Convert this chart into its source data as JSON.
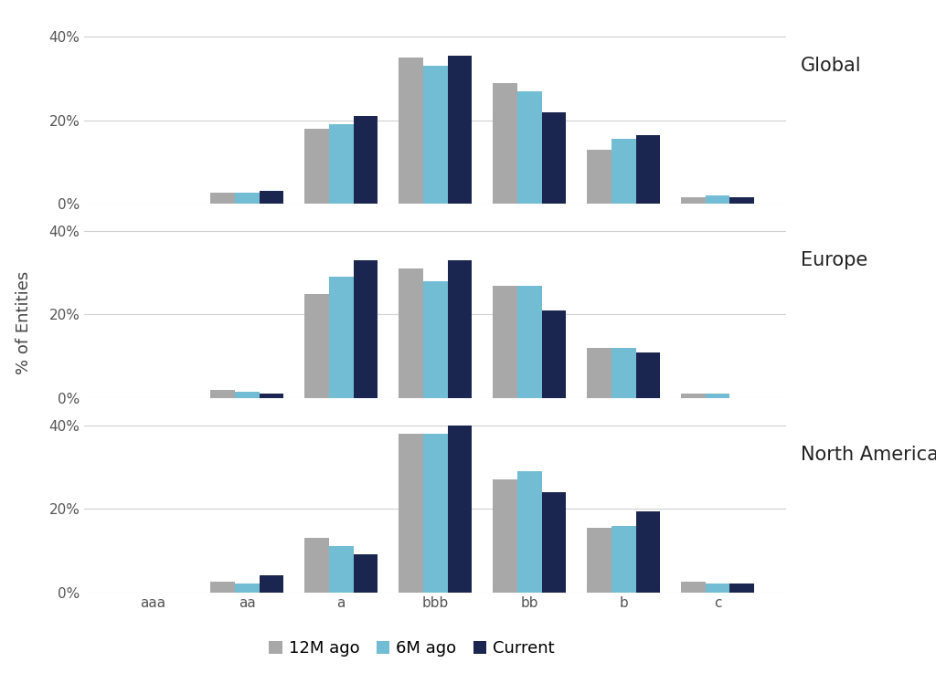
{
  "categories": [
    "aaa",
    "aa",
    "a",
    "bbb",
    "bb",
    "b",
    "c"
  ],
  "regions": [
    "Global",
    "Europe",
    "North America"
  ],
  "series_labels": [
    "12M ago",
    "6M ago",
    "Current"
  ],
  "colors": [
    "#a8a8a8",
    "#72bcd4",
    "#1a2550"
  ],
  "data": {
    "Global": {
      "12M ago": [
        0,
        2.5,
        18,
        35,
        29,
        13,
        1.5
      ],
      "6M ago": [
        0,
        2.5,
        19,
        33,
        27,
        15.5,
        2
      ],
      "Current": [
        0,
        3,
        21,
        35.5,
        22,
        16.5,
        1.5
      ]
    },
    "Europe": {
      "12M ago": [
        0,
        2,
        25,
        31,
        27,
        12,
        1
      ],
      "6M ago": [
        0,
        1.5,
        29,
        28,
        27,
        12,
        1
      ],
      "Current": [
        0,
        1,
        33,
        33,
        21,
        11,
        0
      ]
    },
    "North America": {
      "12M ago": [
        0,
        2.5,
        13,
        38,
        27,
        15.5,
        2.5
      ],
      "6M ago": [
        0,
        2,
        11,
        38,
        29,
        16,
        2
      ],
      "Current": [
        0,
        4,
        9,
        40,
        24,
        19.5,
        2
      ]
    }
  },
  "ylabel": "% of Entities",
  "ylim": [
    0,
    44
  ],
  "yticks": [
    0,
    20,
    40
  ],
  "ytick_labels": [
    "0%",
    "20%",
    "40%"
  ],
  "background_color": "#ffffff",
  "grid_color": "#d0d0d0",
  "bar_width": 0.26,
  "region_label_fontsize": 15,
  "ylabel_fontsize": 13,
  "tick_fontsize": 11,
  "legend_fontsize": 13,
  "legend_marker_size": 10
}
